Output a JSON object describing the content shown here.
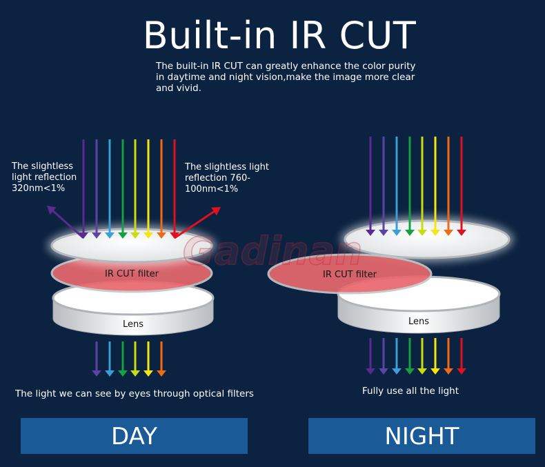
{
  "header": {
    "title": "Built-in IR CUT",
    "subtitle": "The built-in IR CUT can greatly enhance the color purity in daytime and night vision,make the image more clear and vivid."
  },
  "day": {
    "note_left": "The slightless light reflection 320nm<1%",
    "note_right": "The slightless light reflection 760-100nm<1%",
    "filter_label": "IR CUT filter",
    "lens_label": "Lens",
    "caption": "The light we can see by eyes through optical filters",
    "mode_label": "DAY"
  },
  "night": {
    "filter_label": "IR CUT filter",
    "lens_label": "Lens",
    "caption": "Fully use all the light",
    "mode_label": "NIGHT"
  },
  "watermark": "Gadinan",
  "colors": {
    "background": "#0b2240",
    "mode_button": "#1a5a97",
    "filter": "#e8686e",
    "spectrum": [
      "#5a2a8e",
      "#5b44a6",
      "#3a9fd6",
      "#16a040",
      "#c8dc10",
      "#f5e612",
      "#ee6a14",
      "#e0101e"
    ]
  }
}
